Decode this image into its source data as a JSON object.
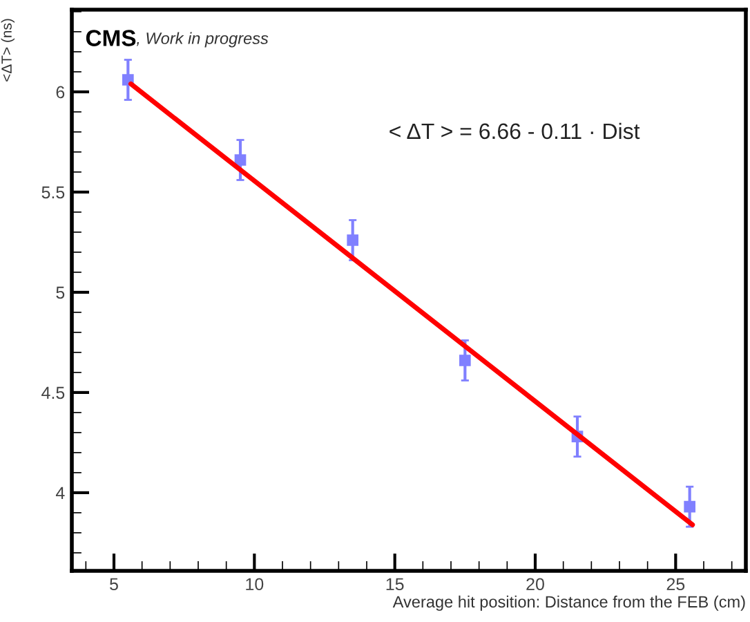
{
  "chart_data": {
    "type": "scatter",
    "xlabel": "Average hit position: Distance from the FEB (cm)",
    "ylabel": "<ΔT> (ns)",
    "annotations": [
      "CMS",
      ", Work in progress",
      "< ΔT > = 6.66 - 0.11 · Dist"
    ],
    "xlim": [
      3.5,
      27.5
    ],
    "ylim": [
      3.61,
      6.41
    ],
    "xticks": [
      5,
      10,
      15,
      20,
      25
    ],
    "yticks": [
      4,
      4.5,
      5,
      5.5,
      6
    ],
    "grid": false,
    "legend": false,
    "series": [
      {
        "color": "#8080ff",
        "marker": "square",
        "x": [
          5.5,
          9.5,
          13.5,
          17.5,
          21.5,
          25.5
        ],
        "values": [
          6.06,
          5.66,
          5.26,
          4.66,
          4.28,
          3.93
        ],
        "errors": [
          0.1,
          0.1,
          0.1,
          0.1,
          0.1,
          0.1
        ]
      },
      {
        "type": "line",
        "color": "#ff0000",
        "marker": "none",
        "line_style": "solid",
        "x": [
          5.6,
          25.6
        ],
        "values": [
          6.04,
          3.84
        ]
      }
    ]
  }
}
